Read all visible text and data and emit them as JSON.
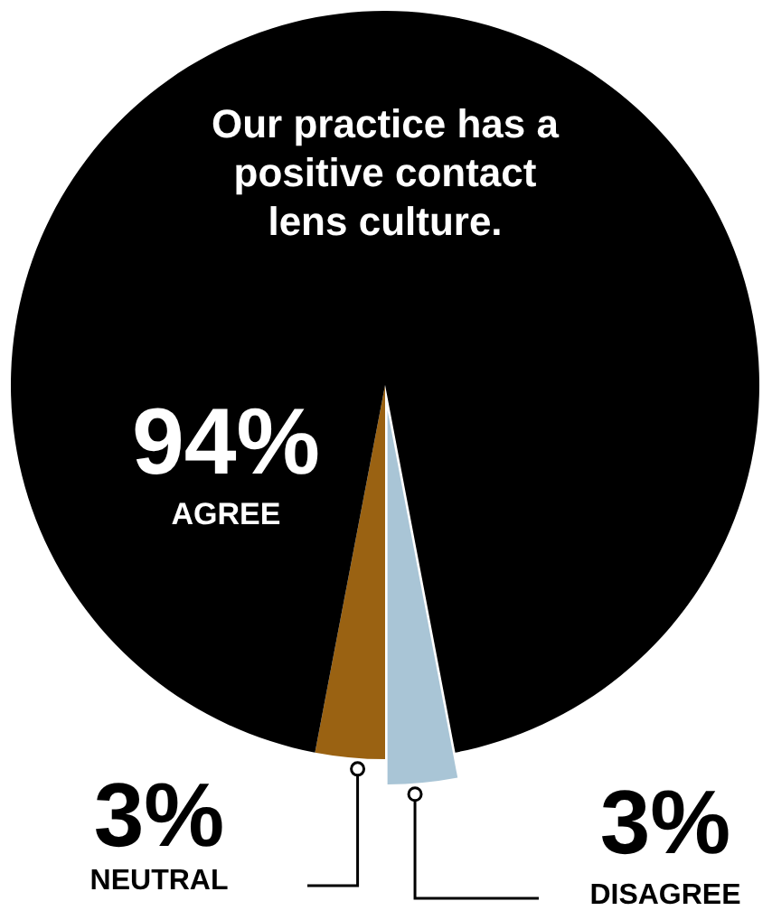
{
  "chart_data": {
    "type": "pie",
    "title": "Our practice has a positive contact lens culture.",
    "categories": [
      "DISAGREE",
      "NEUTRAL",
      "AGREE"
    ],
    "values": [
      3,
      3,
      94
    ],
    "colors": [
      "#a9c5d6",
      "#9a6212",
      "#000000"
    ],
    "value_labels": [
      "3%",
      "3%",
      "94%"
    ],
    "legend": false
  }
}
